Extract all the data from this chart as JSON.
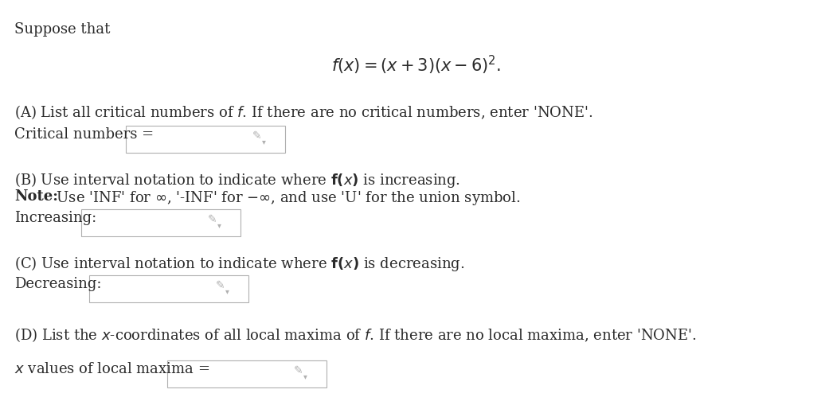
{
  "background_color": "#ffffff",
  "text_color": "#2a2a2a",
  "box_edge": "#b0b0b0",
  "box_fill": "#ffffff",
  "pencil_color": "#b0b0b0",
  "suppose_that": "Suppose that",
  "formula": "$\\mathit{f}(\\mathit{x}) = (\\mathit{x}+3)(\\mathit{x}-6)^2.$",
  "partA_text1": "(A) List all critical numbers of ",
  "partA_text2": "$f$",
  "partA_text3": ". If there are no critical numbers, enter 'NONE'.",
  "partA_label": "Critical numbers = ",
  "partB_line1a": "(B) Use interval notation to indicate where ",
  "partB_line1b": "$\\mathbf{f(x)}$",
  "partB_line1c": " is increasing.",
  "partB_bold": "Note:",
  "partB_rest": " Use 'INF' for $\\infty$, '-INF' for $-\\infty$, and use 'U' for the union symbol.",
  "partB_label": "Increasing:",
  "partC_text1": "(C) Use interval notation to indicate where ",
  "partC_text2": "$\\mathbf{f(x)}$",
  "partC_text3": " is decreasing.",
  "partC_label": "Decreasing:",
  "partD_text1": "(D) List the $\\mathit{x}$-coordinates of all local maxima of ",
  "partD_text2": "$f$",
  "partD_text3": ". If there are no local maxima, enter 'NONE'.",
  "partD_label": "$x$ values of local maxima = ",
  "figsize": [
    10.46,
    5.04
  ],
  "dpi": 100
}
